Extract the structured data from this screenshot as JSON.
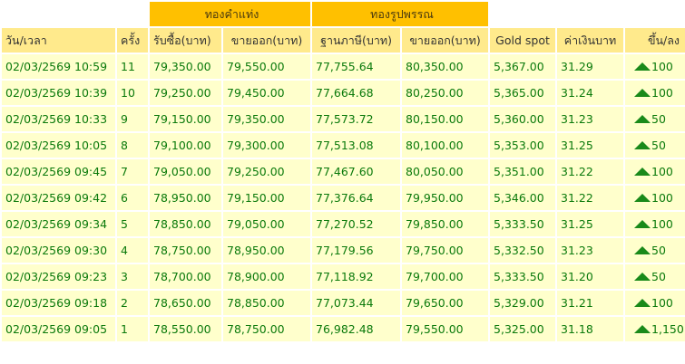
{
  "groups": {
    "bar": "ทองคำแท่ง",
    "ornament": "ทองรูปพรรณ"
  },
  "headers": [
    "วัน/เวลา",
    "ครั้ง",
    "รับซื้อ(บาท)",
    "ขายออก(บาท)",
    "ฐานภาษี(บาท)",
    "ขายออก(บาท)",
    "Gold spot",
    "ค่าเงินบาท",
    "ขึ้น/ลง"
  ],
  "colors": {
    "group_bg": "#FFC000",
    "header_bg": "#FFEA8C",
    "row_bg": "#FFFFCC",
    "text": "#0B7A0B",
    "up": "#1a8a1a"
  },
  "rows": [
    {
      "datetime": "02/03/2569 10:59",
      "round": "11",
      "bar_buy": "79,350.00",
      "bar_sell": "79,550.00",
      "orn_base": "77,755.64",
      "orn_sell": "80,350.00",
      "spot": "5,367.00",
      "thb": "31.29",
      "direction": "up",
      "change": "100"
    },
    {
      "datetime": "02/03/2569 10:39",
      "round": "10",
      "bar_buy": "79,250.00",
      "bar_sell": "79,450.00",
      "orn_base": "77,664.68",
      "orn_sell": "80,250.00",
      "spot": "5,365.00",
      "thb": "31.24",
      "direction": "up",
      "change": "100"
    },
    {
      "datetime": "02/03/2569 10:33",
      "round": "9",
      "bar_buy": "79,150.00",
      "bar_sell": "79,350.00",
      "orn_base": "77,573.72",
      "orn_sell": "80,150.00",
      "spot": "5,360.00",
      "thb": "31.23",
      "direction": "up",
      "change": "50"
    },
    {
      "datetime": "02/03/2569 10:05",
      "round": "8",
      "bar_buy": "79,100.00",
      "bar_sell": "79,300.00",
      "orn_base": "77,513.08",
      "orn_sell": "80,100.00",
      "spot": "5,353.00",
      "thb": "31.25",
      "direction": "up",
      "change": "50"
    },
    {
      "datetime": "02/03/2569 09:45",
      "round": "7",
      "bar_buy": "79,050.00",
      "bar_sell": "79,250.00",
      "orn_base": "77,467.60",
      "orn_sell": "80,050.00",
      "spot": "5,351.00",
      "thb": "31.22",
      "direction": "up",
      "change": "100"
    },
    {
      "datetime": "02/03/2569 09:42",
      "round": "6",
      "bar_buy": "78,950.00",
      "bar_sell": "79,150.00",
      "orn_base": "77,376.64",
      "orn_sell": "79,950.00",
      "spot": "5,346.00",
      "thb": "31.22",
      "direction": "up",
      "change": "100"
    },
    {
      "datetime": "02/03/2569 09:34",
      "round": "5",
      "bar_buy": "78,850.00",
      "bar_sell": "79,050.00",
      "orn_base": "77,270.52",
      "orn_sell": "79,850.00",
      "spot": "5,333.50",
      "thb": "31.25",
      "direction": "up",
      "change": "100"
    },
    {
      "datetime": "02/03/2569 09:30",
      "round": "4",
      "bar_buy": "78,750.00",
      "bar_sell": "78,950.00",
      "orn_base": "77,179.56",
      "orn_sell": "79,750.00",
      "spot": "5,332.50",
      "thb": "31.23",
      "direction": "up",
      "change": "50"
    },
    {
      "datetime": "02/03/2569 09:23",
      "round": "3",
      "bar_buy": "78,700.00",
      "bar_sell": "78,900.00",
      "orn_base": "77,118.92",
      "orn_sell": "79,700.00",
      "spot": "5,333.50",
      "thb": "31.20",
      "direction": "up",
      "change": "50"
    },
    {
      "datetime": "02/03/2569 09:18",
      "round": "2",
      "bar_buy": "78,650.00",
      "bar_sell": "78,850.00",
      "orn_base": "77,073.44",
      "orn_sell": "79,650.00",
      "spot": "5,329.00",
      "thb": "31.21",
      "direction": "up",
      "change": "100"
    },
    {
      "datetime": "02/03/2569 09:05",
      "round": "1",
      "bar_buy": "78,550.00",
      "bar_sell": "78,750.00",
      "orn_base": "76,982.48",
      "orn_sell": "79,550.00",
      "spot": "5,325.00",
      "thb": "31.18",
      "direction": "up",
      "change": "1,150"
    }
  ]
}
